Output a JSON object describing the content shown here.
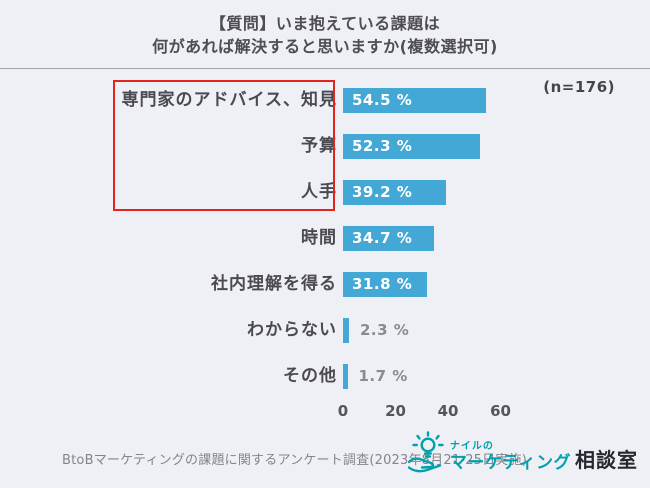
{
  "title": {
    "line1": "【質問】いま抱えている課題は",
    "line2": "何があれば解決すると思いますか(複数選択可)"
  },
  "sample_size": "(n=176)",
  "chart_data": {
    "type": "bar",
    "orientation": "horizontal",
    "title": "【質問】いま抱えている課題は 何があれば解決すると思いますか(複数選択可)",
    "categories": [
      "専門家のアドバイス、知見",
      "予算",
      "人手",
      "時間",
      "社内理解を得る",
      "わからない",
      "その他"
    ],
    "values": [
      54.5,
      52.3,
      39.2,
      34.7,
      31.8,
      2.3,
      1.7
    ],
    "value_labels": [
      "54.5 %",
      "52.3 %",
      "39.2 %",
      "34.7 %",
      "31.8 %",
      "2.3 %",
      "1.7 %"
    ],
    "x_ticks": [
      "0",
      "20",
      "40",
      "60"
    ],
    "x_tick_values": [
      0,
      20,
      40,
      60
    ],
    "xlim": [
      0,
      60
    ],
    "unit": "%",
    "bar_color": "#43a8d5",
    "grid": false,
    "highlight": {
      "rows": [
        0,
        1,
        2
      ],
      "border_color": "#e5231d"
    }
  },
  "footer": {
    "source": "BtoBマーケティングの課題に関するアンケート調査(2023年8月21-25日実施)",
    "logo": {
      "brand_small": "ナイルの",
      "brand_main": "マーケティング",
      "brand_suffix": "相談室",
      "icon": "lightbulb-hand-icon",
      "brand_color": "#00a1ae"
    }
  },
  "colors": {
    "background": "#eff0f5",
    "bar": "#43a8d5",
    "highlight_red": "#e5231d",
    "brand_teal": "#00a1ae",
    "text_dark": "#4a4a50"
  }
}
